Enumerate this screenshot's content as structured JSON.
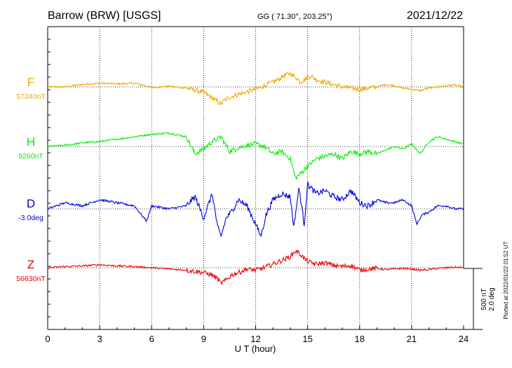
{
  "header": {
    "station": "Barrow (BRW)  [USGS]",
    "coords": "GG ( 71.30°, 203.25°)",
    "date": "2021/12/22"
  },
  "colors": {
    "F": "#f0a800",
    "H": "#00ee00",
    "D": "#0000dd",
    "Z": "#ee0000",
    "axis": "#000000",
    "grid": "#000000"
  },
  "chart_data": {
    "type": "line",
    "xlabel": "U T (hour)",
    "xlim": [
      0,
      24
    ],
    "xticks": [
      "0",
      "3",
      "6",
      "9",
      "12",
      "15",
      "18",
      "21",
      "24"
    ],
    "scale_bar": {
      "line1": "500 nT",
      "line2": "2.0 deg"
    },
    "footnote": "Plotted at 2022/01/22 01:52 UT",
    "grid": true,
    "series": [
      {
        "name": "F",
        "baseline": "57240nT",
        "unit": "nT",
        "x": [
          0,
          1,
          2,
          3,
          4,
          5,
          5.5,
          6,
          7,
          8,
          8.5,
          9,
          9.5,
          9.8,
          10,
          10.3,
          10.6,
          11,
          11.5,
          12,
          12.5,
          13,
          13.3,
          13.6,
          14,
          14.3,
          14.6,
          14.9,
          15.2,
          15.5,
          16,
          16.5,
          17,
          17.5,
          18,
          18.5,
          19,
          19.5,
          20,
          20.5,
          21,
          21.5,
          22,
          22.5,
          23,
          23.5,
          24
        ],
        "values": [
          0,
          0,
          20,
          30,
          25,
          30,
          15,
          -5,
          5,
          -10,
          -25,
          -45,
          -90,
          -120,
          -140,
          -100,
          -80,
          -60,
          -40,
          -20,
          10,
          40,
          60,
          90,
          110,
          80,
          40,
          70,
          90,
          60,
          40,
          20,
          0,
          -10,
          -20,
          -10,
          0,
          20,
          10,
          -10,
          -20,
          -30,
          -10,
          0,
          10,
          15,
          0
        ]
      },
      {
        "name": "H",
        "baseline": "9260nT",
        "unit": "nT",
        "x": [
          0,
          1,
          2,
          3,
          4,
          5,
          6,
          7,
          8,
          8.5,
          9,
          9.5,
          10,
          10.5,
          11,
          11.5,
          12,
          12.5,
          13,
          13.5,
          14,
          14.3,
          14.6,
          15,
          15.5,
          16,
          16.5,
          17,
          17.5,
          18,
          18.5,
          19,
          19.5,
          20,
          20.5,
          21,
          21.5,
          22,
          22.5,
          23,
          23.5,
          24
        ],
        "values": [
          0,
          10,
          30,
          40,
          60,
          80,
          100,
          110,
          80,
          -60,
          -20,
          40,
          80,
          -40,
          -10,
          10,
          20,
          0,
          -60,
          -40,
          -100,
          -260,
          -220,
          -160,
          -100,
          -80,
          -60,
          -100,
          -40,
          -60,
          -40,
          -60,
          -30,
          0,
          -20,
          20,
          -60,
          40,
          80,
          60,
          40,
          20
        ]
      },
      {
        "name": "D",
        "baseline": "-3.0deg",
        "unit": "deg",
        "x": [
          0,
          1,
          2,
          3,
          4,
          5,
          5.7,
          6,
          7,
          8,
          8.5,
          9,
          9.5,
          9.8,
          10,
          10.3,
          10.6,
          11,
          11.5,
          12,
          12.3,
          12.6,
          13,
          13.5,
          14,
          14.2,
          14.5,
          14.8,
          15,
          15.5,
          16,
          16.5,
          17,
          17.5,
          18,
          18.5,
          19,
          19.5,
          20,
          20.5,
          21,
          21.3,
          21.6,
          22,
          22.5,
          23,
          23.5,
          24
        ],
        "values": [
          0,
          0.2,
          0.1,
          0.3,
          0.2,
          0.1,
          -0.4,
          0.1,
          0,
          0.1,
          0.4,
          -0.3,
          0.5,
          -0.6,
          -0.9,
          -0.3,
          -0.1,
          0.3,
          0.1,
          -0.5,
          -0.9,
          -0.2,
          0.3,
          0.5,
          0.4,
          -0.6,
          0.7,
          -0.5,
          0.8,
          0.5,
          0.6,
          0.4,
          0.3,
          0.6,
          0.2,
          0.1,
          0.3,
          0.2,
          0.2,
          0.3,
          0.1,
          -0.5,
          -0.2,
          -0.1,
          0.1,
          0.1,
          0,
          0
        ]
      },
      {
        "name": "Z",
        "baseline": "56630nT",
        "unit": "nT",
        "x": [
          0,
          1,
          2,
          3,
          4,
          5,
          6,
          7,
          8,
          8.5,
          9,
          9.5,
          9.8,
          10,
          10.3,
          10.6,
          11,
          11.5,
          12,
          12.5,
          13,
          13.5,
          14,
          14.3,
          14.6,
          14.9,
          15.2,
          15.5,
          16,
          16.5,
          17,
          17.5,
          18,
          18.5,
          19,
          19.5,
          20,
          20.5,
          21,
          21.5,
          22,
          22.5,
          23,
          23.5,
          24
        ],
        "values": [
          0,
          10,
          15,
          25,
          15,
          10,
          0,
          -10,
          -20,
          -30,
          -40,
          -60,
          -90,
          -130,
          -100,
          -60,
          -40,
          -10,
          -20,
          0,
          30,
          60,
          90,
          140,
          110,
          60,
          40,
          30,
          40,
          20,
          10,
          20,
          -20,
          -10,
          -5,
          -15,
          -10,
          -5,
          -10,
          -20,
          -15,
          -5,
          0,
          5,
          0
        ]
      }
    ]
  }
}
